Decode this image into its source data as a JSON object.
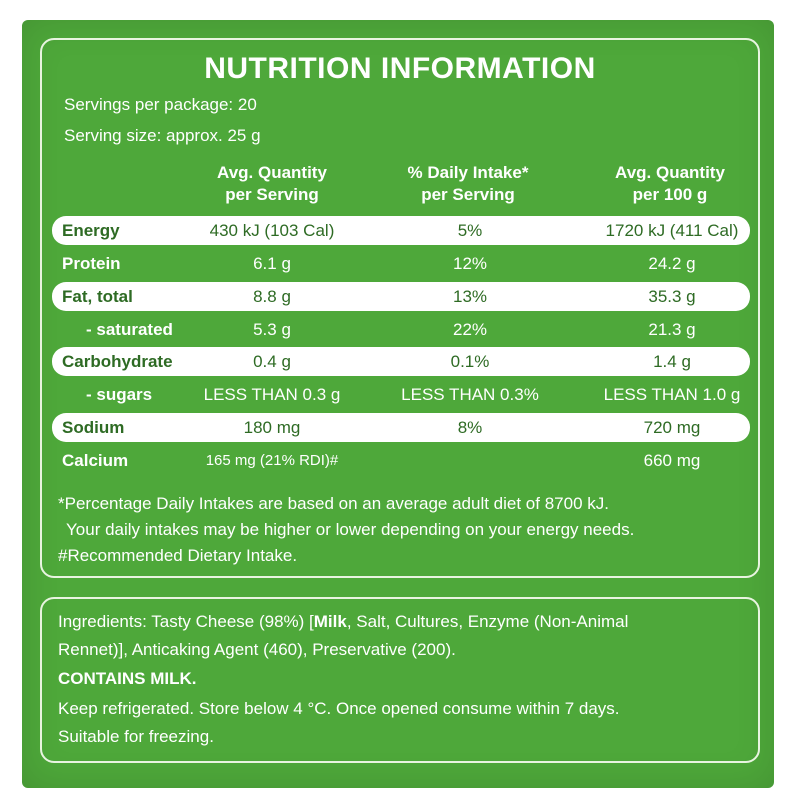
{
  "title": "NUTRITION INFORMATION",
  "servings_per_package": "Servings per package: 20",
  "serving_size": "Serving size: approx. 25 g",
  "columns": {
    "c1": [
      "Avg. Quantity",
      "per Serving"
    ],
    "c2": [
      "% Daily Intake*",
      "per Serving"
    ],
    "c3": [
      "Avg. Quantity",
      "per 100 g"
    ]
  },
  "rows": [
    {
      "label": "Energy",
      "per_serving": "430 kJ (103 Cal)",
      "daily_intake": "5%",
      "per_100g": "1720 kJ (411 Cal)"
    },
    {
      "label": "Protein",
      "per_serving": "6.1 g",
      "daily_intake": "12%",
      "per_100g": "24.2 g"
    },
    {
      "label": "Fat, total",
      "per_serving": "8.8 g",
      "daily_intake": "13%",
      "per_100g": "35.3 g"
    },
    {
      "label": "- saturated",
      "per_serving": "5.3 g",
      "daily_intake": "22%",
      "per_100g": "21.3 g"
    },
    {
      "label": "Carbohydrate",
      "per_serving": "0.4 g",
      "daily_intake": "0.1%",
      "per_100g": "1.4 g"
    },
    {
      "label": "- sugars",
      "per_serving": "LESS THAN 0.3 g",
      "daily_intake": "LESS THAN 0.3%",
      "per_100g": "LESS THAN 1.0 g"
    },
    {
      "label": "Sodium",
      "per_serving": "180 mg",
      "daily_intake": "8%",
      "per_100g": "720 mg"
    },
    {
      "label": "Calcium",
      "per_serving": "165 mg (21% RDI)#",
      "daily_intake": "",
      "per_100g": "660 mg"
    }
  ],
  "footnotes": [
    "*Percentage Daily Intakes are based on an average adult diet of 8700 kJ.",
    "Your daily intakes may be higher or lower depending on your energy needs.",
    "#Recommended Dietary Intake."
  ],
  "ingredients": {
    "line1_prefix": "Ingredients: Tasty Cheese (98%) [",
    "line1_bold": "Milk",
    "line1_suffix": ", Salt, Cultures, Enzyme (Non-Animal",
    "line2": "Rennet)], Anticaking Agent (460), Preservative (200).",
    "contains": "CONTAINS MILK.",
    "storage": "Keep refrigerated. Store below 4 °C. Once opened consume within 7 days.",
    "freezing": "Suitable for freezing."
  },
  "colors": {
    "background": "#4ea83a",
    "band": "#ffffff",
    "band_text": "#2e6b24"
  }
}
